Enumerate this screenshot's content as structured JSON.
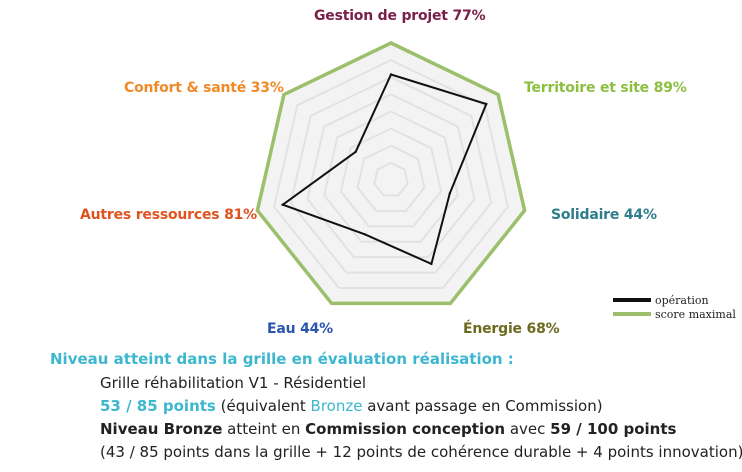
{
  "chart_data": {
    "type": "radar",
    "axes": [
      {
        "name": "Gestion de projet",
        "value_label": "77%",
        "value": 77,
        "color": "#7a2048"
      },
      {
        "name": "Territoire et site",
        "value_label": "89%",
        "value": 89,
        "color": "#8cbf3f"
      },
      {
        "name": "Solidaire",
        "value_label": "44%",
        "value": 44,
        "color": "#2e7d8c"
      },
      {
        "name": "Énergie",
        "value_label": "68%",
        "value": 68,
        "color": "#6b6a1e"
      },
      {
        "name": "Eau",
        "value_label": "44%",
        "value": 44,
        "color": "#2b55b0"
      },
      {
        "name": "Autres ressources",
        "value_label": "81%",
        "value": 81,
        "color": "#e0531f"
      },
      {
        "name": "Confort & santé",
        "value_label": "33%",
        "value": 33,
        "color": "#f08a28"
      }
    ],
    "series": [
      {
        "name": "opération",
        "color": "#111111",
        "values": [
          77,
          89,
          44,
          68,
          44,
          81,
          33
        ]
      },
      {
        "name": "score maximal",
        "color": "#9bbf6a",
        "values": [
          100,
          100,
          100,
          100,
          100,
          100,
          100
        ]
      }
    ],
    "rlim": [
      0,
      100
    ],
    "grid": true,
    "legend_position": "bottom-right"
  },
  "summary": {
    "heading": "Niveau atteint dans la grille en évaluation réalisation :",
    "grid_name": "Grille réhabilitation V1 - Résidentiel",
    "points": "53 / 85 points",
    "equiv_open": " (équivalent ",
    "equiv_level": "Bronze",
    "equiv_close": " avant passage en Commission)",
    "niveau_label": "Niveau Bronze",
    "atteint_text": " atteint en ",
    "commission_label": "Commission conception",
    "avec_text": " avec ",
    "commission_points": "59 / 100 points",
    "breakdown": "(43 / 85 points dans la grille + 12 points de cohérence durable + 4 points innovation)"
  }
}
